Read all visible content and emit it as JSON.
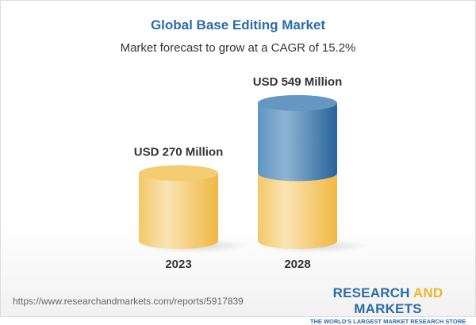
{
  "header": {
    "title": "Global Base Editing Market",
    "subtitle": "Market forecast to grow at a CAGR of 15.2%"
  },
  "chart_data": {
    "type": "bar",
    "style": "3d-cylinder",
    "categories": [
      "2023",
      "2028"
    ],
    "values": [
      270,
      549
    ],
    "data_labels": [
      "USD 270 Million",
      "USD 549 Million"
    ],
    "unit": "USD Million",
    "cagr": "15.2%",
    "colors": {
      "base": "#f2c35a",
      "growth": "#3f7fb5"
    }
  },
  "footer": {
    "url": "https://www.researchandmarkets.com/reports/5917839",
    "logo_part1": "RESEARCH ",
    "logo_part2": "AND",
    "logo_part3": " MARKETS",
    "tagline": "THE WORLD'S LARGEST MARKET RESEARCH STORE"
  }
}
